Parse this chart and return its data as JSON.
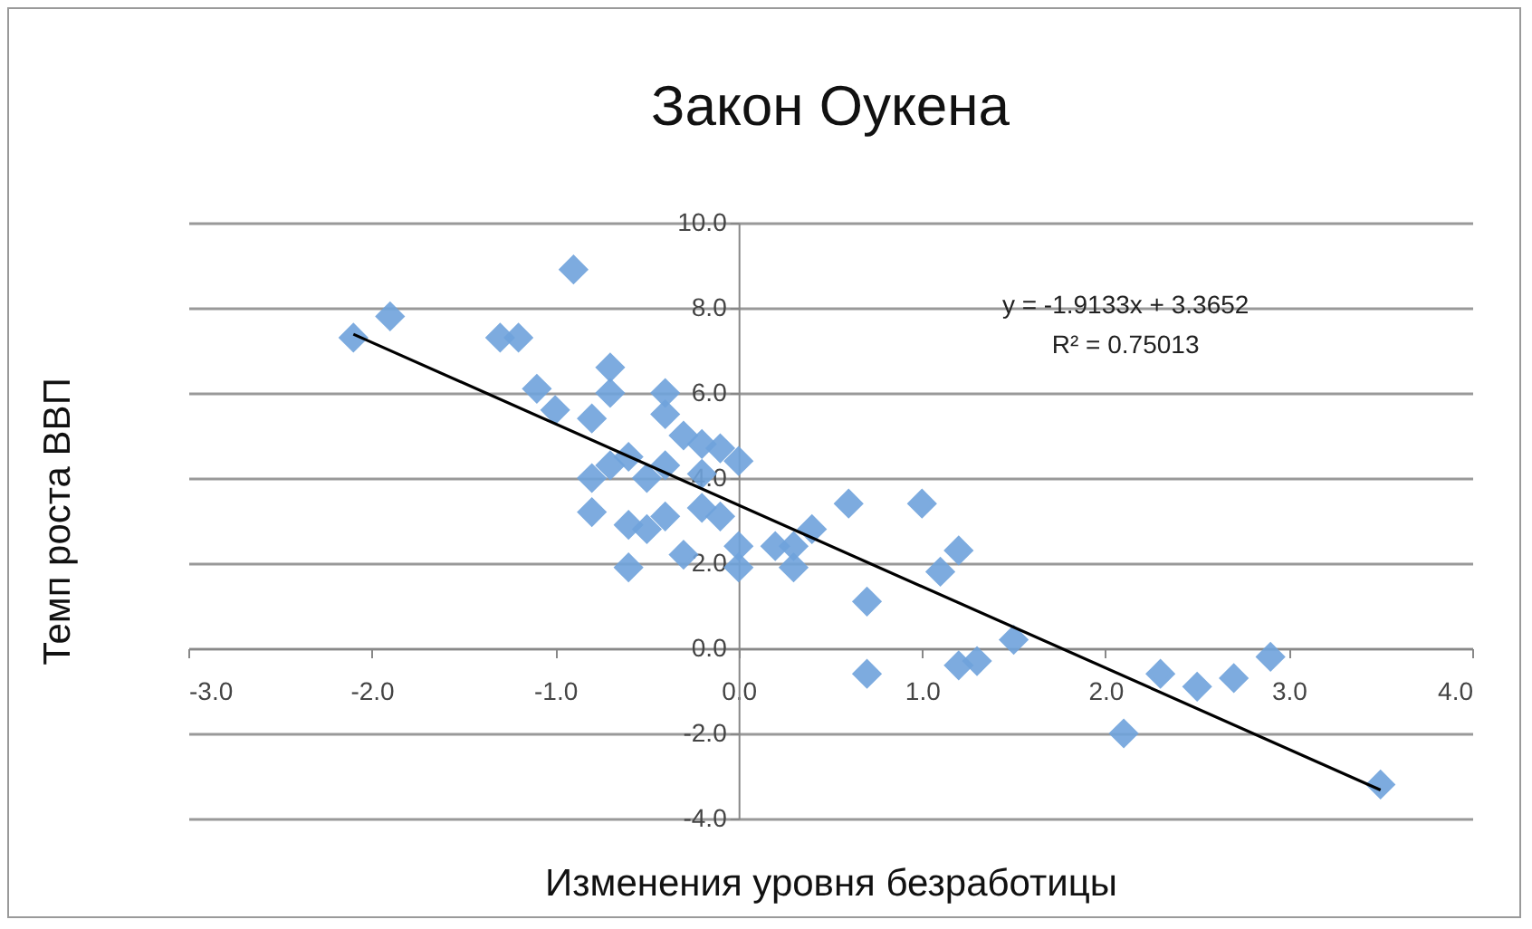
{
  "chart_data": {
    "type": "scatter",
    "title": "Закон Оукена",
    "xlabel": "Изменения уровня безработицы",
    "ylabel": "Темп роста ВВП",
    "xlim": [
      -3,
      4
    ],
    "ylim": [
      -4,
      10
    ],
    "xticks": [
      {
        "value": -3,
        "label": "-3.0"
      },
      {
        "value": -2,
        "label": "-2.0"
      },
      {
        "value": -1,
        "label": "-1.0"
      },
      {
        "value": 0,
        "label": "0.0"
      },
      {
        "value": 1,
        "label": "1.0"
      },
      {
        "value": 2,
        "label": "2.0"
      },
      {
        "value": 3,
        "label": "3.0"
      },
      {
        "value": 4,
        "label": "4.0"
      }
    ],
    "yticks": [
      {
        "value": -4,
        "label": "-4.0"
      },
      {
        "value": -2,
        "label": "-2.0"
      },
      {
        "value": 0,
        "label": "0.0"
      },
      {
        "value": 2,
        "label": "2.0"
      },
      {
        "value": 4,
        "label": "4.0"
      },
      {
        "value": 6,
        "label": "6.0"
      },
      {
        "value": 8,
        "label": "8.0"
      },
      {
        "value": 10,
        "label": "10.0"
      }
    ],
    "grid": "y",
    "marker": "diamond",
    "annotations": [
      "y = -1.9133x + 3.3652",
      "R² = 0.75013"
    ],
    "series": [
      {
        "color": "#6fa3dc",
        "x": [
          -2.1,
          -1.9,
          -0.9,
          -1.3,
          -1.2,
          -1.1,
          -1.0,
          -0.7,
          -0.7,
          -0.8,
          -0.4,
          -0.4,
          -0.3,
          -0.2,
          -0.1,
          0.0,
          -0.8,
          -0.7,
          -0.6,
          -0.5,
          -0.4,
          -0.2,
          -0.8,
          -0.6,
          -0.5,
          -0.4,
          -0.2,
          -0.1,
          -0.3,
          -0.6,
          0.0,
          0.0,
          0.2,
          0.3,
          0.3,
          0.4,
          0.6,
          1.0,
          0.7,
          0.7,
          1.1,
          1.2,
          1.2,
          1.3,
          1.5,
          2.1,
          2.3,
          2.5,
          2.7,
          2.9,
          3.5
        ],
        "values": [
          7.3,
          7.8,
          8.9,
          7.3,
          7.3,
          6.1,
          5.6,
          6.6,
          6.0,
          5.4,
          5.5,
          6.0,
          5.0,
          4.8,
          4.7,
          4.4,
          4.0,
          4.3,
          4.5,
          4.0,
          4.3,
          4.1,
          3.2,
          2.9,
          2.8,
          3.1,
          3.3,
          3.1,
          2.2,
          1.9,
          2.4,
          1.9,
          2.4,
          1.9,
          2.4,
          2.8,
          3.4,
          3.4,
          1.1,
          -0.6,
          1.8,
          2.3,
          -0.4,
          -0.3,
          0.2,
          -2.0,
          -0.6,
          -0.9,
          -0.7,
          -0.2,
          -3.2
        ]
      },
      {
        "type": "line",
        "color": "#000000",
        "line_style": "solid",
        "marker": "none",
        "x": [
          -2.1,
          3.5
        ],
        "values": [
          7.38,
          -3.33
        ]
      }
    ]
  }
}
